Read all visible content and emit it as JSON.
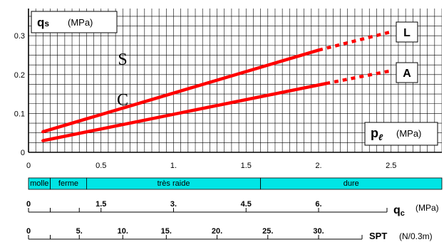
{
  "chart_data": {
    "type": "line",
    "x_axis": {
      "label": "p",
      "label_sub": "ℓ",
      "unit": "(MPa)",
      "range": [
        0,
        2.85
      ],
      "ticks": [
        0,
        0.5,
        1,
        1.5,
        2,
        2.5
      ],
      "tick_labels": [
        "0",
        "0.5",
        "1.",
        "1.5",
        "2.",
        "2.5"
      ]
    },
    "y_axis": {
      "label": "q",
      "label_sub": "s",
      "unit": "(MPa)",
      "range": [
        0,
        0.37
      ],
      "ticks": [
        0,
        0.1,
        0.2,
        0.3
      ],
      "tick_labels": [
        "0",
        "0.1",
        "0.2",
        "0.3"
      ]
    },
    "grid": true,
    "series": [
      {
        "name": "L",
        "color": "#ff0000",
        "solid": [
          [
            0.1,
            0.053
          ],
          [
            2.0,
            0.263
          ]
        ],
        "dashed": [
          [
            2.0,
            0.263
          ],
          [
            2.5,
            0.31
          ]
        ]
      },
      {
        "name": "A",
        "color": "#ff0000",
        "solid": [
          [
            0.1,
            0.03
          ],
          [
            2.05,
            0.177
          ]
        ],
        "dashed": [
          [
            2.05,
            0.177
          ],
          [
            2.5,
            0.21
          ]
        ]
      }
    ],
    "annotations": [
      {
        "text": "S",
        "x": 0.65,
        "y": 0.26
      },
      {
        "text": "C",
        "x": 0.65,
        "y": 0.15
      }
    ],
    "consistency_scale": {
      "ranges": [
        {
          "label": "molle",
          "from": 0,
          "to": 0.15
        },
        {
          "label": "ferme",
          "from": 0.15,
          "to": 0.4
        },
        {
          "label": "très raide",
          "from": 0.4,
          "to": 1.6
        },
        {
          "label": "dure",
          "from": 1.6,
          "to": 2.85
        }
      ],
      "color": "#00e5e5"
    },
    "qc_scale": {
      "label": "q",
      "label_sub": "c",
      "unit": "(MPa)",
      "ticks": [
        {
          "at": 0,
          "label": "0"
        },
        {
          "at": 0.15,
          "label": ""
        },
        {
          "at": 0.35,
          "label": ""
        },
        {
          "at": 0.5,
          "label": "1.5"
        },
        {
          "at": 1.0,
          "label": "3."
        },
        {
          "at": 1.5,
          "label": "4.5"
        },
        {
          "at": 2.0,
          "label": "6."
        }
      ]
    },
    "spt_scale": {
      "label": "SPT",
      "unit": "(N/0.3m)",
      "ticks": [
        {
          "at": 0,
          "label": "0"
        },
        {
          "at": 0.15,
          "label": ""
        },
        {
          "at": 0.35,
          "label": "5."
        },
        {
          "at": 0.65,
          "label": "10."
        },
        {
          "at": 0.95,
          "label": "15."
        },
        {
          "at": 1.3,
          "label": "20."
        },
        {
          "at": 1.65,
          "label": "25."
        },
        {
          "at": 2.0,
          "label": "30."
        }
      ]
    }
  }
}
